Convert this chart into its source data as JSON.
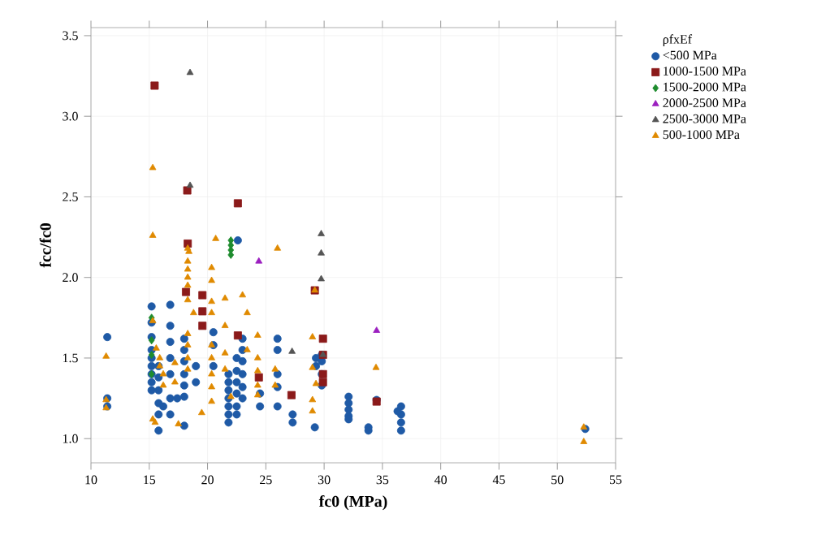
{
  "chart_data": {
    "type": "scatter",
    "xlabel": "fc0 (MPa)",
    "ylabel": "fcc/fc0",
    "legend_title": "ρfxEf",
    "xlim": [
      10,
      55
    ],
    "ylim": [
      0.85,
      3.55
    ],
    "xticks": [
      10,
      15,
      20,
      25,
      30,
      35,
      40,
      45,
      50,
      55
    ],
    "yticks": [
      {
        "value": 1,
        "label": "1.0"
      },
      {
        "value": 1.5,
        "label": "1.5"
      },
      {
        "value": 2,
        "label": "2.0"
      },
      {
        "value": 2.5,
        "label": "2.5"
      },
      {
        "value": 3,
        "label": "3.0"
      },
      {
        "value": 3.5,
        "label": "3.5"
      }
    ],
    "grid": true,
    "legend": "right",
    "series": [
      {
        "name": "<500 MPa",
        "color": "#1f5aa6",
        "marker": "circle",
        "x": [
          11.4,
          11.4,
          11.4,
          15.2,
          15.2,
          15.2,
          15.2,
          15.2,
          15.2,
          15.2,
          15.2,
          15.2,
          15.8,
          15.8,
          15.8,
          15.8,
          15.8,
          15.8,
          16.2,
          16.8,
          16.8,
          16.8,
          16.8,
          16.8,
          16.8,
          16.8,
          17.4,
          18.0,
          18.0,
          18.0,
          18.0,
          18.0,
          18.0,
          18.0,
          19.0,
          19.0,
          20.5,
          20.5,
          20.5,
          21.8,
          21.8,
          21.8,
          21.8,
          21.8,
          21.8,
          21.8,
          22.5,
          22.5,
          22.5,
          22.5,
          22.5,
          22.5,
          23.0,
          23.0,
          23.0,
          23.0,
          23.0,
          23.0,
          22.6,
          24.5,
          24.5,
          26.0,
          26.0,
          26.0,
          26.0,
          26.0,
          27.3,
          27.3,
          29.3,
          29.3,
          29.2,
          29.8,
          29.8,
          29.8,
          29.8,
          32.1,
          32.1,
          32.1,
          32.1,
          32.1,
          33.8,
          33.8,
          34.5,
          36.6,
          36.6,
          36.6,
          36.6,
          36.3,
          52.4
        ],
        "values": [
          1.63,
          1.25,
          1.2,
          1.82,
          1.72,
          1.63,
          1.55,
          1.5,
          1.45,
          1.4,
          1.35,
          1.3,
          1.45,
          1.38,
          1.3,
          1.22,
          1.15,
          1.05,
          1.2,
          1.83,
          1.7,
          1.6,
          1.5,
          1.4,
          1.25,
          1.15,
          1.25,
          1.62,
          1.55,
          1.48,
          1.4,
          1.33,
          1.26,
          1.08,
          1.45,
          1.35,
          1.66,
          1.58,
          1.45,
          1.4,
          1.35,
          1.3,
          1.25,
          1.2,
          1.15,
          1.1,
          1.5,
          1.42,
          1.35,
          1.28,
          1.2,
          1.15,
          1.62,
          1.55,
          1.48,
          1.4,
          1.32,
          1.25,
          2.23,
          1.28,
          1.2,
          1.62,
          1.55,
          1.4,
          1.32,
          1.2,
          1.15,
          1.1,
          1.5,
          1.45,
          1.07,
          1.52,
          1.48,
          1.4,
          1.33,
          1.26,
          1.22,
          1.18,
          1.14,
          1.12,
          1.05,
          1.07,
          1.24,
          1.2,
          1.15,
          1.1,
          1.05,
          1.17,
          1.06
        ]
      },
      {
        "name": "1000-1500 MPa",
        "color": "#8b1a1a",
        "marker": "square",
        "x": [
          15.46,
          18.26,
          22.6,
          18.3,
          18.15,
          19.56,
          19.56,
          19.56,
          22.6,
          24.4,
          27.2,
          29.2,
          29.9,
          29.9,
          29.9,
          29.9,
          34.5
        ],
        "values": [
          3.19,
          2.54,
          2.46,
          2.21,
          1.91,
          1.89,
          1.79,
          1.7,
          1.64,
          1.38,
          1.27,
          1.92,
          1.62,
          1.52,
          1.4,
          1.35,
          1.23
        ]
      },
      {
        "name": "1500-2000 MPa",
        "color": "#1e8c2e",
        "marker": "diamond",
        "x": [
          22.0,
          22.0,
          22.0,
          22.0,
          15.2,
          15.2,
          15.2,
          15.2
        ],
        "values": [
          2.23,
          2.2,
          2.17,
          2.14,
          1.75,
          1.61,
          1.52,
          1.4
        ]
      },
      {
        "name": "2000-2500 MPa",
        "color": "#9b1fbf",
        "marker": "triangle",
        "x": [
          24.4,
          34.5
        ],
        "values": [
          2.1,
          1.67
        ]
      },
      {
        "name": "2500-3000 MPa",
        "color": "#555555",
        "marker": "triangle",
        "x": [
          18.5,
          18.5,
          29.75,
          29.75,
          29.75,
          29.9,
          27.25
        ],
        "values": [
          3.27,
          2.57,
          2.27,
          2.15,
          1.99,
          1.52,
          1.54
        ]
      },
      {
        "name": "500-1000 MPa",
        "color": "#e08a00",
        "marker": "triangle",
        "x": [
          15.3,
          15.3,
          18.4,
          20.7,
          26.0,
          18.3,
          18.3,
          18.3,
          18.3,
          18.3,
          18.3,
          18.8,
          18.3,
          18.3,
          18.3,
          18.3,
          17.5,
          20.35,
          20.35,
          20.35,
          20.35,
          20.35,
          20.35,
          20.35,
          20.35,
          20.35,
          19.5,
          21.5,
          21.5,
          21.5,
          21.5,
          23.0,
          23.4,
          23.4,
          24.3,
          24.3,
          24.3,
          24.3,
          24.3,
          25.8,
          25.8,
          29.0,
          29.0,
          29.0,
          29.0,
          15.3,
          15.6,
          15.9,
          15.9,
          16.2,
          16.2,
          15.3,
          15.5,
          11.3,
          11.3,
          11.3,
          17.2,
          17.2,
          22.0,
          29.3,
          29.2,
          34.45,
          52.27,
          52.27
        ],
        "values": [
          2.68,
          2.26,
          2.16,
          2.24,
          2.18,
          2.18,
          2.1,
          2.05,
          2.0,
          1.95,
          1.86,
          1.78,
          1.65,
          1.58,
          1.5,
          1.43,
          1.09,
          2.06,
          1.98,
          1.85,
          1.78,
          1.58,
          1.5,
          1.4,
          1.32,
          1.23,
          1.16,
          1.87,
          1.7,
          1.53,
          1.43,
          1.89,
          1.78,
          1.55,
          1.64,
          1.5,
          1.42,
          1.33,
          1.27,
          1.43,
          1.33,
          1.63,
          1.44,
          1.24,
          1.17,
          1.73,
          1.56,
          1.5,
          1.45,
          1.4,
          1.33,
          1.12,
          1.1,
          1.51,
          1.24,
          1.19,
          1.47,
          1.35,
          1.26,
          1.34,
          1.92,
          1.44,
          1.07,
          0.98
        ]
      }
    ]
  }
}
